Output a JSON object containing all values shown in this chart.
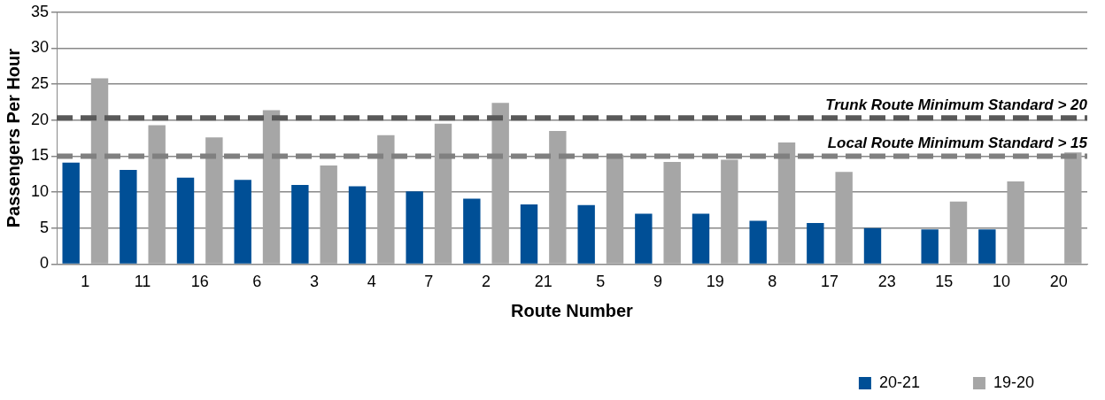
{
  "chart_data": {
    "type": "bar",
    "xlabel": "Route Number",
    "ylabel": "Passengers Per Hour",
    "categories": [
      "1",
      "11",
      "16",
      "6",
      "3",
      "4",
      "7",
      "2",
      "21",
      "5",
      "9",
      "19",
      "8",
      "17",
      "23",
      "15",
      "10",
      "20"
    ],
    "series": [
      {
        "name": "20-21",
        "color": "#004f96",
        "values": [
          14.1,
          13.1,
          12,
          11.7,
          11,
          10.8,
          10.1,
          9.1,
          8.3,
          8.2,
          7,
          7,
          6,
          5.7,
          5,
          4.8,
          4.8,
          null
        ]
      },
      {
        "name": "19-20",
        "color": "#a6a6a6",
        "values": [
          25.8,
          19.3,
          17.6,
          21.4,
          13.7,
          17.9,
          19.5,
          22.4,
          18.5,
          15.2,
          14.2,
          14.5,
          16.9,
          12.8,
          null,
          8.7,
          11.5,
          15.5
        ]
      }
    ],
    "ylim": [
      0,
      35
    ],
    "yticks": [
      0,
      5,
      10,
      15,
      20,
      25,
      30,
      35
    ],
    "grid": "y",
    "legend": "bottom right",
    "ref_lines": [
      {
        "axis": "y",
        "value": 20.3,
        "label": "Trunk Route Minimum Standard > 20",
        "color": "#595959",
        "line_style": "dashed"
      },
      {
        "axis": "y",
        "value": 15,
        "label": "Local Route Minimum Standard > 15",
        "color": "#808080",
        "line_style": "dashed"
      }
    ]
  }
}
